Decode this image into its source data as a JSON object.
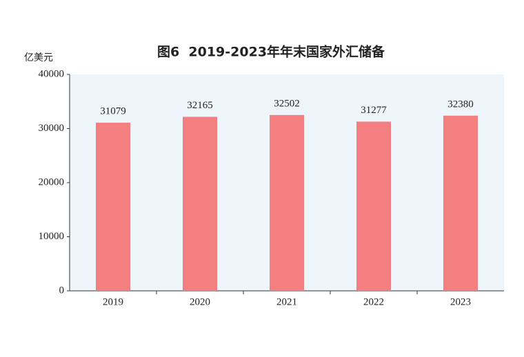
{
  "chart_data": {
    "type": "bar",
    "title": "图6  2019-2023年年末国家外汇储备",
    "y_label": "亿美元",
    "categories": [
      "2019",
      "2020",
      "2021",
      "2022",
      "2023"
    ],
    "values": [
      31079,
      32165,
      32502,
      31277,
      32380
    ],
    "color": "#f47f80",
    "ylim": [
      0,
      40000
    ],
    "yticks": [
      0,
      10000,
      20000,
      30000,
      40000
    ],
    "grid": false
  }
}
